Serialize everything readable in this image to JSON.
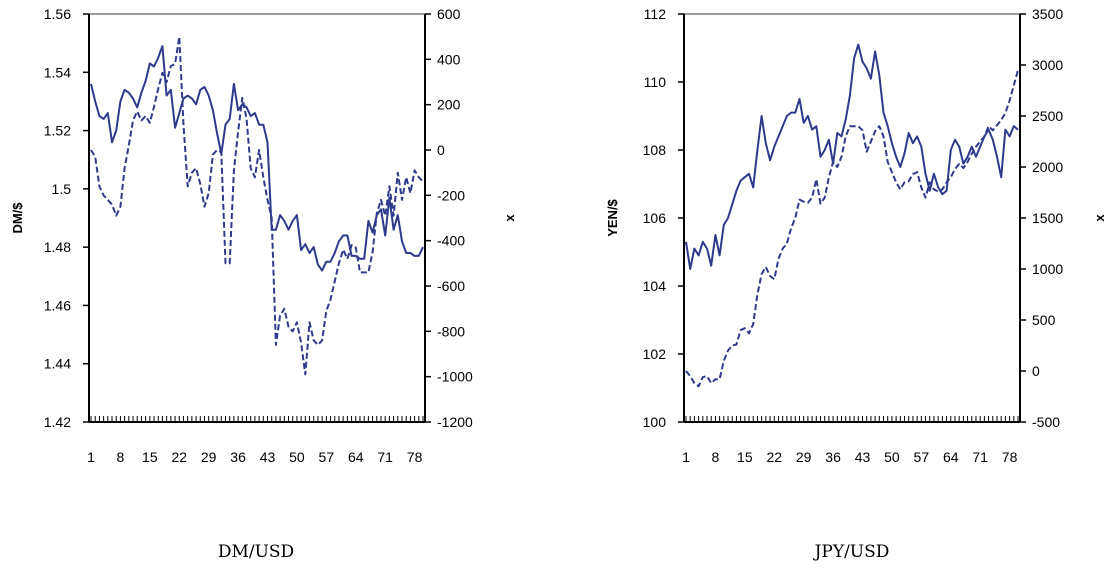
{
  "chart_data": [
    {
      "type": "line",
      "caption": "DM/USD",
      "ylabel_left": "DM/$",
      "ylabel_right": "x",
      "ylim_left": [
        1.42,
        1.56
      ],
      "yticks_left": [
        "1.56",
        "1.54",
        "1.52",
        "1.5",
        "1.48",
        "1.46",
        "1.44",
        "1.42"
      ],
      "ylim_right": [
        -1200,
        600
      ],
      "yticks_right": [
        "600",
        "400",
        "200",
        "0",
        "-200",
        "-400",
        "-600",
        "-800",
        "-1000",
        "-1200"
      ],
      "xlim": [
        1,
        80
      ],
      "xtick_labels": [
        "1",
        "8",
        "15",
        "22",
        "29",
        "36",
        "43",
        "50",
        "57",
        "64",
        "71",
        "78"
      ],
      "series": [
        {
          "style": "solid",
          "axis": "left",
          "values": [
            1.536,
            1.53,
            1.525,
            1.524,
            1.526,
            1.516,
            1.52,
            1.53,
            1.534,
            1.533,
            1.531,
            1.528,
            1.533,
            1.537,
            1.543,
            1.542,
            1.545,
            1.549,
            1.532,
            1.534,
            1.521,
            1.526,
            1.531,
            1.532,
            1.531,
            1.529,
            1.534,
            1.535,
            1.532,
            1.527,
            1.519,
            1.512,
            1.522,
            1.524,
            1.536,
            1.527,
            1.529,
            1.528,
            1.525,
            1.526,
            1.522,
            1.522,
            1.516,
            1.486,
            1.486,
            1.491,
            1.489,
            1.486,
            1.489,
            1.491,
            1.479,
            1.481,
            1.478,
            1.48,
            1.474,
            1.472,
            1.475,
            1.475,
            1.478,
            1.482,
            1.484,
            1.484,
            1.477,
            1.477,
            1.476,
            1.476,
            1.489,
            1.485,
            1.491,
            1.493,
            1.484,
            1.497,
            1.486,
            1.491,
            1.482,
            1.478,
            1.478,
            1.477,
            1.477,
            1.48
          ]
        },
        {
          "style": "dashed",
          "axis": "right",
          "values": [
            0,
            -30,
            -160,
            -200,
            -220,
            -240,
            -290,
            -250,
            -80,
            20,
            130,
            170,
            130,
            150,
            120,
            190,
            270,
            340,
            300,
            370,
            380,
            500,
            110,
            -160,
            -100,
            -80,
            -150,
            -250,
            -190,
            -20,
            0,
            -10,
            -500,
            -500,
            -90,
            80,
            230,
            140,
            -80,
            -120,
            0,
            -120,
            -220,
            -300,
            -860,
            -730,
            -700,
            -780,
            -800,
            -760,
            -850,
            -990,
            -760,
            -840,
            -860,
            -840,
            -710,
            -660,
            -580,
            -500,
            -440,
            -480,
            -420,
            -430,
            -540,
            -540,
            -540,
            -450,
            -280,
            -220,
            -290,
            -160,
            -290,
            -100,
            -220,
            -120,
            -190,
            -90,
            -120,
            -140
          ]
        }
      ]
    },
    {
      "type": "line",
      "caption": "JPY/USD",
      "ylabel_left": "YEN/$",
      "ylabel_right": "x",
      "ylim_left": [
        100,
        112
      ],
      "yticks_left": [
        "112",
        "110",
        "108",
        "106",
        "104",
        "102",
        "100"
      ],
      "ylim_right": [
        -500,
        3500
      ],
      "yticks_right": [
        "3500",
        "3000",
        "2500",
        "2000",
        "1500",
        "1000",
        "500",
        "0",
        "-500"
      ],
      "xlim": [
        1,
        80
      ],
      "xtick_labels": [
        "1",
        "8",
        "15",
        "22",
        "29",
        "36",
        "43",
        "50",
        "57",
        "64",
        "71",
        "78"
      ],
      "series": [
        {
          "style": "solid",
          "axis": "left",
          "values": [
            105.3,
            104.5,
            105.1,
            104.9,
            105.3,
            105.1,
            104.6,
            105.5,
            104.9,
            105.8,
            106.0,
            106.4,
            106.8,
            107.1,
            107.2,
            107.3,
            106.9,
            108.0,
            109.0,
            108.2,
            107.7,
            108.1,
            108.4,
            108.7,
            109.0,
            109.1,
            109.1,
            109.5,
            108.8,
            109.0,
            108.6,
            108.7,
            107.8,
            108.0,
            108.3,
            107.6,
            108.5,
            108.4,
            108.9,
            109.6,
            110.7,
            111.1,
            110.6,
            110.4,
            110.1,
            110.9,
            110.2,
            109.1,
            108.7,
            108.2,
            107.8,
            107.5,
            107.9,
            108.5,
            108.2,
            108.4,
            108.1,
            107.3,
            106.8,
            107.3,
            106.9,
            106.7,
            106.8,
            108.0,
            108.3,
            108.1,
            107.6,
            107.8,
            108.1,
            107.8,
            108.1,
            108.4,
            108.6,
            108.3,
            107.8,
            107.2,
            108.6,
            108.4,
            108.7,
            108.6
          ]
        },
        {
          "style": "dashed",
          "axis": "right",
          "values": [
            0,
            -50,
            -120,
            -150,
            -60,
            -50,
            -120,
            -80,
            -80,
            100,
            200,
            250,
            260,
            400,
            420,
            370,
            460,
            750,
            950,
            1020,
            930,
            900,
            1100,
            1200,
            1250,
            1400,
            1500,
            1680,
            1660,
            1650,
            1700,
            1880,
            1640,
            1700,
            1900,
            2050,
            2000,
            2100,
            2300,
            2400,
            2400,
            2400,
            2360,
            2150,
            2250,
            2350,
            2400,
            2300,
            2050,
            1950,
            1850,
            1780,
            1850,
            1860,
            1930,
            1950,
            1800,
            1700,
            1850,
            1780,
            1760,
            1780,
            1850,
            1900,
            1980,
            2030,
            1990,
            2050,
            2130,
            2200,
            2250,
            2300,
            2400,
            2360,
            2410,
            2460,
            2530,
            2650,
            2800,
            2950
          ]
        }
      ]
    }
  ]
}
